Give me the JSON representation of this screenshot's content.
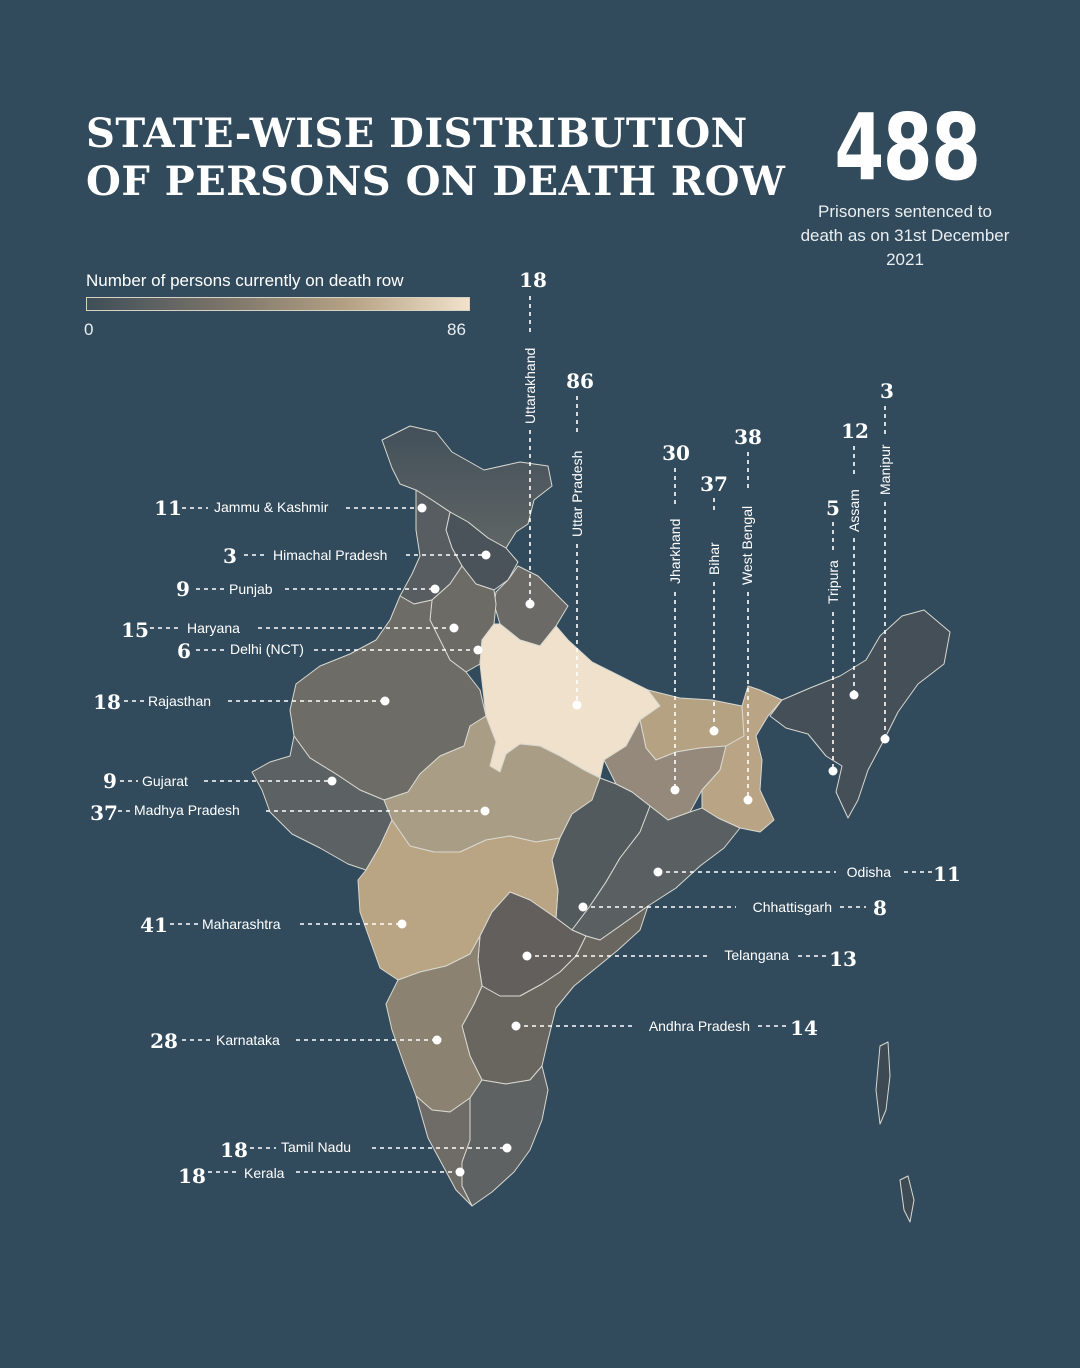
{
  "title": {
    "line1": "STATE-WISE DISTRIBUTION",
    "line2": "OF PERSONS ON DEATH ROW"
  },
  "total": {
    "value": "488",
    "caption": "Prisoners sentenced to death as on 31st December 2021"
  },
  "legend": {
    "title": "Number of persons currently on death row",
    "min": "0",
    "max": "86"
  },
  "colors": {
    "background": "#324b5c",
    "min_fill": "#3f4e58",
    "max_fill": "#f2e2cc",
    "line": "#ffffff"
  },
  "states": [
    {
      "name": "Jammu & Kashmir",
      "value": "11"
    },
    {
      "name": "Himachal Pradesh",
      "value": "3"
    },
    {
      "name": "Punjab",
      "value": "9"
    },
    {
      "name": "Haryana",
      "value": "15"
    },
    {
      "name": "Delhi (NCT)",
      "value": "6"
    },
    {
      "name": "Rajasthan",
      "value": "18"
    },
    {
      "name": "Gujarat",
      "value": "9"
    },
    {
      "name": "Madhya Pradesh",
      "value": "37"
    },
    {
      "name": "Maharashtra",
      "value": "41"
    },
    {
      "name": "Karnataka",
      "value": "28"
    },
    {
      "name": "Tamil Nadu",
      "value": "18"
    },
    {
      "name": "Kerala",
      "value": "18"
    },
    {
      "name": "Odisha",
      "value": "11"
    },
    {
      "name": "Chhattisgarh",
      "value": "8"
    },
    {
      "name": "Telangana",
      "value": "13"
    },
    {
      "name": "Andhra Pradesh",
      "value": "14"
    },
    {
      "name": "Uttarakhand",
      "value": "18"
    },
    {
      "name": "Uttar Pradesh",
      "value": "86"
    },
    {
      "name": "Jharkhand",
      "value": "30"
    },
    {
      "name": "Bihar",
      "value": "37"
    },
    {
      "name": "West Bengal",
      "value": "38"
    },
    {
      "name": "Tripura",
      "value": "5"
    },
    {
      "name": "Assam",
      "value": "12"
    },
    {
      "name": "Manipur",
      "value": "3"
    }
  ]
}
